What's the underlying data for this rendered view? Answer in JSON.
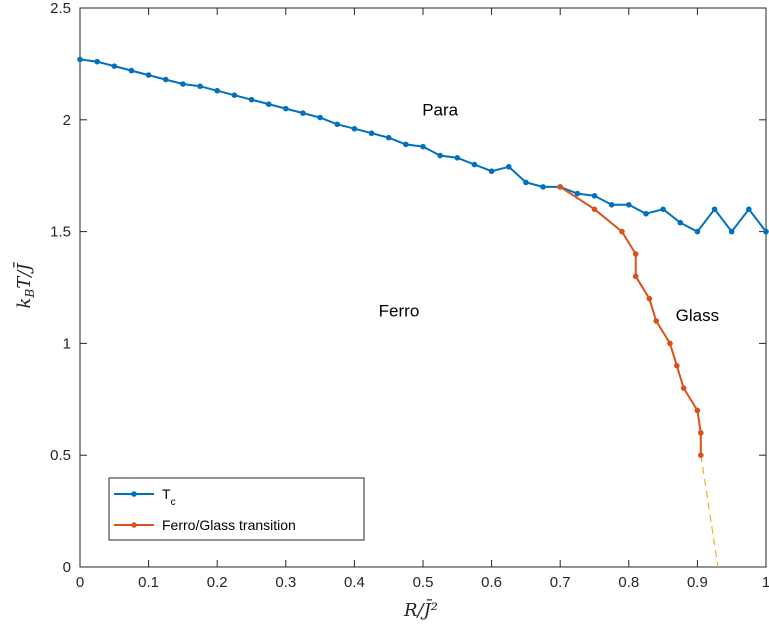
{
  "chart_data": {
    "type": "line",
    "title": "",
    "xlabel": "R/J̄²",
    "ylabel": "k_B T/J̄",
    "xlim": [
      0,
      1
    ],
    "ylim": [
      0,
      2.5
    ],
    "xticks": [
      "0",
      "0.1",
      "0.2",
      "0.3",
      "0.4",
      "0.5",
      "0.6",
      "0.7",
      "0.8",
      "0.9",
      "1"
    ],
    "yticks": [
      "0",
      "0.5",
      "1",
      "1.5",
      "2",
      "2.5"
    ],
    "grid": false,
    "legend_position": "bottom-left",
    "series": [
      {
        "name": "Tc",
        "color": "#0072bd",
        "marker": "dot",
        "x": [
          0,
          0.025,
          0.05,
          0.075,
          0.1,
          0.125,
          0.15,
          0.175,
          0.2,
          0.225,
          0.25,
          0.275,
          0.3,
          0.325,
          0.35,
          0.375,
          0.4,
          0.425,
          0.45,
          0.475,
          0.5,
          0.525,
          0.55,
          0.575,
          0.6,
          0.625,
          0.65,
          0.675,
          0.7,
          0.725,
          0.75,
          0.775,
          0.8,
          0.825,
          0.85,
          0.875,
          0.9,
          0.925,
          0.95,
          0.975,
          1.0
        ],
        "y": [
          2.27,
          2.26,
          2.24,
          2.22,
          2.2,
          2.18,
          2.16,
          2.15,
          2.13,
          2.11,
          2.09,
          2.07,
          2.05,
          2.03,
          2.01,
          1.98,
          1.96,
          1.94,
          1.92,
          1.89,
          1.88,
          1.84,
          1.83,
          1.8,
          1.77,
          1.79,
          1.72,
          1.7,
          1.7,
          1.67,
          1.66,
          1.62,
          1.62,
          1.58,
          1.6,
          1.54,
          1.5,
          1.6,
          1.5,
          1.6,
          1.5
        ]
      },
      {
        "name": "Ferro/Glass transition",
        "color": "#d95319",
        "marker": "dot",
        "x": [
          0.7,
          0.75,
          0.79,
          0.81,
          0.81,
          0.83,
          0.84,
          0.86,
          0.87,
          0.88,
          0.9,
          0.905,
          0.905
        ],
        "y": [
          1.7,
          1.6,
          1.5,
          1.4,
          1.3,
          1.2,
          1.1,
          1.0,
          0.9,
          0.8,
          0.7,
          0.6,
          0.5
        ]
      }
    ],
    "extrapolation": {
      "style": "dashed",
      "color": "#edb120",
      "x": [
        0.905,
        0.93
      ],
      "y": [
        0.5,
        0.0
      ]
    },
    "annotations": [
      {
        "text": "Para",
        "x": 0.525,
        "y": 2.02
      },
      {
        "text": "Ferro",
        "x": 0.465,
        "y": 1.12
      },
      {
        "text": "Glass",
        "x": 0.9,
        "y": 1.1
      }
    ],
    "legend": {
      "entries": [
        {
          "main": "T",
          "sub": "c",
          "color": "#0072bd"
        },
        {
          "main": "Ferro/Glass transition",
          "sub": "",
          "color": "#d95319"
        }
      ]
    }
  }
}
